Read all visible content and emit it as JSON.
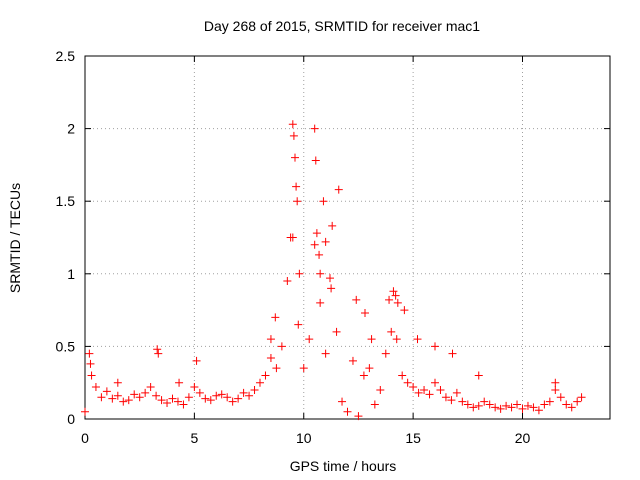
{
  "chart_data": {
    "type": "scatter",
    "title": "Day 268 of 2015, SRMTID for receiver mac1",
    "xlabel": "GPS time / hours",
    "ylabel": "SRMTID / TECUs",
    "xlim": [
      0,
      24
    ],
    "ylim": [
      0,
      2.5
    ],
    "xticks": [
      0,
      5,
      10,
      15,
      20
    ],
    "yticks": [
      0,
      0.5,
      1,
      1.5,
      2,
      2.5
    ],
    "xtick_labels": [
      "0",
      "5",
      "10",
      "15",
      "20"
    ],
    "ytick_labels": [
      "0",
      "0.5",
      "1",
      "1.5",
      "2",
      "2.5"
    ],
    "grid": true,
    "marker": "+",
    "series": [
      {
        "name": "SRMTID",
        "color": "#ff0000",
        "x": [
          0.0,
          0.25,
          0.5,
          0.75,
          1.0,
          1.25,
          1.5,
          1.75,
          2.0,
          2.25,
          2.5,
          2.75,
          3.0,
          3.25,
          3.5,
          3.75,
          4.0,
          4.25,
          4.5,
          4.75,
          5.0,
          5.25,
          5.5,
          5.75,
          6.0,
          6.25,
          6.5,
          6.75,
          7.0,
          7.25,
          7.5,
          7.75,
          8.0,
          8.25,
          8.5,
          8.75,
          9.0,
          9.25,
          9.5,
          9.75,
          10.0,
          10.25,
          10.5,
          10.75,
          11.0,
          11.25,
          11.5,
          11.75,
          12.0,
          12.25,
          12.5,
          12.75,
          13.0,
          13.25,
          13.5,
          13.75,
          14.0,
          14.25,
          14.5,
          14.75,
          15.0,
          15.25,
          15.5,
          15.75,
          16.0,
          16.25,
          16.5,
          16.75,
          17.0,
          17.25,
          17.5,
          17.75,
          18.0,
          18.25,
          18.5,
          18.75,
          19.0,
          19.25,
          19.5,
          19.75,
          20.0,
          20.25,
          20.5,
          20.75,
          21.0,
          21.25,
          21.5,
          21.75,
          22.0,
          22.25,
          22.5,
          22.7,
          0.2,
          0.3,
          1.5,
          3.3,
          3.35,
          4.3,
          5.1,
          8.5,
          8.7,
          9.4,
          9.5,
          9.55,
          9.6,
          9.65,
          9.7,
          9.8,
          10.5,
          10.55,
          10.6,
          10.7,
          10.75,
          10.9,
          11.0,
          11.2,
          11.3,
          11.6,
          12.4,
          12.8,
          13.1,
          13.9,
          14.1,
          14.2,
          14.3,
          14.6,
          15.2,
          16.0,
          16.8,
          18.0,
          21.5
        ],
        "y": [
          0.05,
          0.38,
          0.22,
          0.15,
          0.19,
          0.14,
          0.16,
          0.12,
          0.13,
          0.17,
          0.15,
          0.18,
          0.22,
          0.16,
          0.13,
          0.11,
          0.14,
          0.12,
          0.1,
          0.15,
          0.22,
          0.18,
          0.14,
          0.13,
          0.16,
          0.17,
          0.15,
          0.12,
          0.14,
          0.18,
          0.16,
          0.2,
          0.25,
          0.3,
          0.42,
          0.35,
          0.5,
          0.95,
          1.25,
          0.65,
          0.35,
          0.55,
          1.2,
          0.8,
          0.45,
          0.9,
          0.6,
          0.12,
          0.05,
          0.4,
          0.02,
          0.3,
          0.35,
          0.1,
          0.2,
          0.45,
          0.6,
          0.55,
          0.3,
          0.25,
          0.22,
          0.18,
          0.2,
          0.17,
          0.25,
          0.2,
          0.15,
          0.13,
          0.18,
          0.12,
          0.1,
          0.08,
          0.09,
          0.12,
          0.1,
          0.08,
          0.07,
          0.09,
          0.08,
          0.1,
          0.07,
          0.09,
          0.08,
          0.06,
          0.1,
          0.12,
          0.2,
          0.15,
          0.1,
          0.08,
          0.12,
          0.15,
          0.45,
          0.3,
          0.25,
          0.48,
          0.45,
          0.25,
          0.4,
          0.55,
          0.7,
          1.25,
          2.03,
          1.95,
          1.8,
          1.6,
          1.5,
          1.0,
          2.0,
          1.78,
          1.28,
          1.13,
          1.0,
          1.5,
          1.22,
          0.97,
          1.33,
          1.58,
          0.82,
          0.73,
          0.55,
          0.82,
          0.88,
          0.85,
          0.8,
          0.75,
          0.55,
          0.5,
          0.45,
          0.3,
          0.25
        ]
      }
    ]
  }
}
